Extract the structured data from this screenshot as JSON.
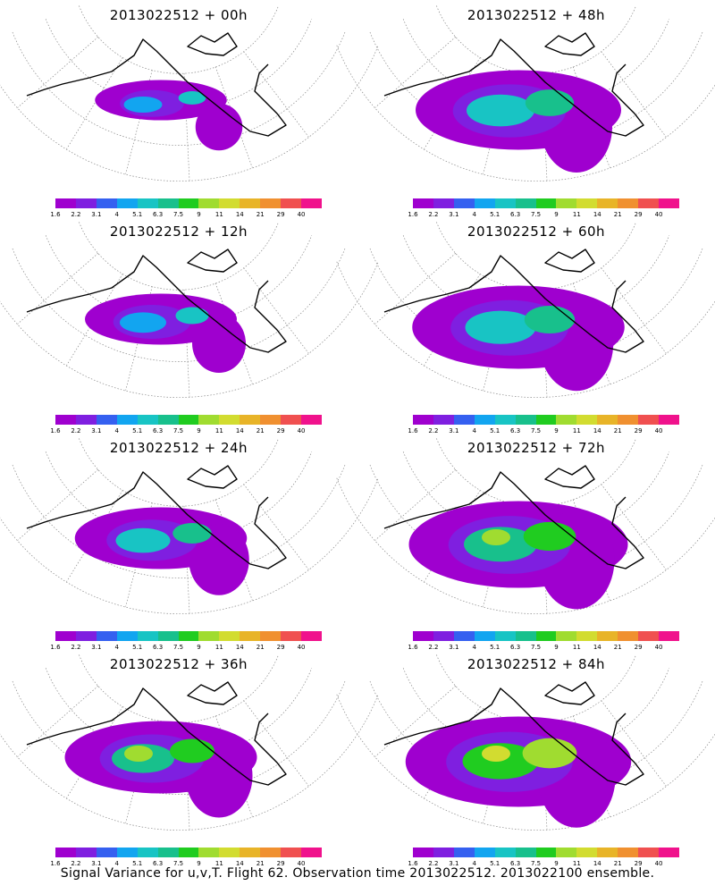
{
  "panels": [
    {
      "title": "2013022512 + 00h",
      "intensity": 0,
      "coverage": 0.25
    },
    {
      "title": "2013022512 + 48h",
      "intensity": 1,
      "coverage": 0.8
    },
    {
      "title": "2013022512 + 12h",
      "intensity": 0,
      "coverage": 0.4
    },
    {
      "title": "2013022512 + 60h",
      "intensity": 1,
      "coverage": 0.85
    },
    {
      "title": "2013022512 + 24h",
      "intensity": 1,
      "coverage": 0.55
    },
    {
      "title": "2013022512 + 72h",
      "intensity": 2,
      "coverage": 0.9
    },
    {
      "title": "2013022512 + 36h",
      "intensity": 2,
      "coverage": 0.7
    },
    {
      "title": "2013022512 + 84h",
      "intensity": 3,
      "coverage": 0.95
    }
  ],
  "colorbar": {
    "labels": [
      "1.6",
      "2.2",
      "3.1",
      "4",
      "5.1",
      "6.3",
      "7.5",
      "9",
      "11",
      "14",
      "21",
      "29",
      "40"
    ],
    "colors": [
      "#9f00cf",
      "#7f1fe0",
      "#3560f0",
      "#12a5f0",
      "#18c4c4",
      "#18c08c",
      "#20cc20",
      "#a0dc30",
      "#d2dc30",
      "#e8b428",
      "#f09030",
      "#f05050",
      "#f0128c"
    ]
  },
  "footer": "Signal Variance for u,v,T. Flight 62. Observation time 2013022512. 2013022100 ensemble."
}
